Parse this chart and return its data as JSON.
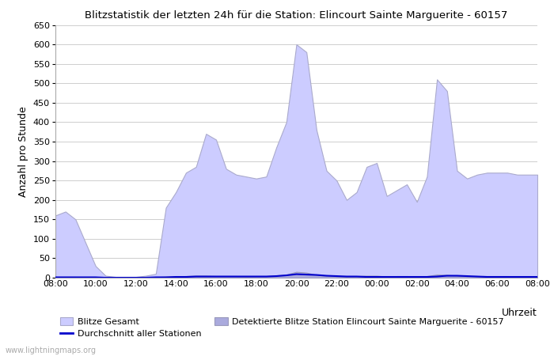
{
  "title": "Blitzstatistik der letzten 24h für die Station: Elincourt Sainte Marguerite - 60157",
  "ylabel": "Anzahl pro Stunde",
  "xlabel": "Uhrzeit",
  "watermark": "www.lightningmaps.org",
  "ylim": [
    0,
    650
  ],
  "yticks": [
    0,
    50,
    100,
    150,
    200,
    250,
    300,
    350,
    400,
    450,
    500,
    550,
    600,
    650
  ],
  "xtick_labels": [
    "08:00",
    "10:00",
    "12:00",
    "14:00",
    "16:00",
    "18:00",
    "20:00",
    "22:00",
    "00:00",
    "02:00",
    "04:00",
    "06:00",
    "08:00"
  ],
  "area_color": "#ccccff",
  "area_edge_color": "#aaaacc",
  "station_color": "#aaaadd",
  "line_color": "#0000cc",
  "legend_area1": "Blitze Gesamt",
  "legend_area2": "Detektierte Blitze Station Elincourt Sainte Marguerite - 60157",
  "legend_line": "Durchschnitt aller Stationen",
  "background_color": "#ffffff",
  "grid_color": "#bbbbbb",
  "gesamt": [
    160,
    170,
    150,
    90,
    30,
    5,
    2,
    2,
    2,
    5,
    10,
    180,
    220,
    270,
    285,
    370,
    355,
    280,
    265,
    260,
    255,
    260,
    335,
    400,
    600,
    580,
    380,
    275,
    250,
    200,
    220,
    285,
    295,
    210,
    225,
    240,
    195,
    260,
    510,
    480,
    275,
    255,
    265,
    270,
    270,
    270,
    265,
    265,
    265
  ],
  "station": [
    2,
    2,
    2,
    1,
    1,
    0,
    0,
    0,
    0,
    0,
    1,
    3,
    3,
    4,
    5,
    5,
    4,
    4,
    4,
    3,
    4,
    4,
    6,
    8,
    15,
    13,
    7,
    5,
    4,
    3,
    4,
    5,
    5,
    3,
    4,
    4,
    3,
    4,
    8,
    7,
    5,
    4,
    4,
    4,
    4,
    4,
    3,
    3,
    3
  ],
  "avg": [
    1,
    1,
    1,
    1,
    1,
    0,
    0,
    0,
    0,
    0,
    1,
    1,
    2,
    2,
    3,
    3,
    3,
    3,
    3,
    3,
    3,
    3,
    4,
    6,
    9,
    8,
    7,
    5,
    4,
    3,
    3,
    2,
    2,
    2,
    2,
    2,
    2,
    2,
    3,
    5,
    5,
    4,
    3,
    2,
    2,
    2,
    2,
    2,
    2
  ]
}
